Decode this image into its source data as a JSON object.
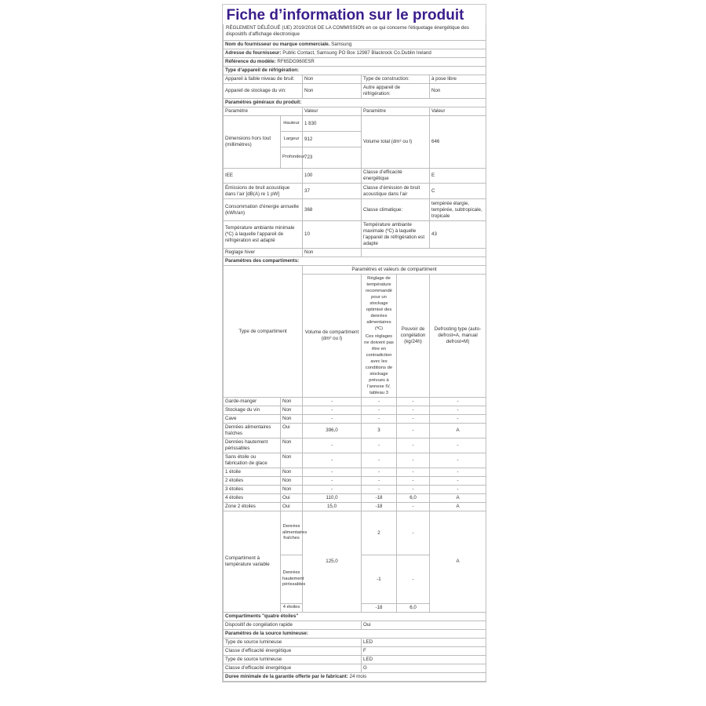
{
  "title": "Fiche d’information sur le produit",
  "regulation": "RÈGLEMENT DÉLÉGUÉ (UE) 2019/2016 DE LA COMMISSION en ce qui concerne l'étiquetage énergétique des dispositifs d'affichage électronique",
  "supplier": {
    "label": "Nom du fournisseur ou marque commerciale.",
    "value": "Samsung"
  },
  "address": {
    "label": "Adresse du fournisseur:",
    "value": "Public Contact, Samsung PO Box 12987 Blackrock Co.Dublin Ireland"
  },
  "model": {
    "label": "Référence du modèle:",
    "value": "RF65DG960ESR"
  },
  "appliance_type": {
    "heading": "Type d’appareil de réfrigération:",
    "low_noise_label": "Appareil à faible niveau de bruit:",
    "low_noise": "Non",
    "construction_label": "Type de construction:",
    "construction": "à pose libre",
    "wine_label": "Appareil de stockage du vin:",
    "wine": "Non",
    "other_label": "Autre appareil de réfrigération:",
    "other": "Non"
  },
  "general": {
    "heading": "Paramètres généraux du produit:",
    "col_param": "Paramètre",
    "col_value": "Valeur",
    "dimensions_label": "Dimensions hors tout (millimètres)",
    "height_label": "Hauteur",
    "height": "1 830",
    "width_label": "Largeur",
    "width": "912",
    "depth_label": "Profondeur",
    "depth": "723",
    "volume_label": "Volume total (dm³ ou l)",
    "volume": "646",
    "eei_label": "IEE",
    "eei": "100",
    "energy_class_label": "Classe d’efficacité énergétique",
    "energy_class": "E",
    "noise_label": "Émissions de bruit acoustique dans l’air [dB(A) re 1 pW]",
    "noise": "37",
    "noise_class_label": "Classe d’émission de bruit acoustique dans l’air",
    "noise_class": "C",
    "consumption_label": "Consommation d’énergie annuelle (kWh/an)",
    "consumption": "368",
    "climate_label": "Classe climatique:",
    "climate": "tempérée élargie, tempérée, subtropicale, tropicale",
    "min_temp_label": "Température ambiante minimale (ºC) à laquelle l’appareil de réfrigération est adapté",
    "min_temp": "10",
    "max_temp_label": "Température ambiante maximale (ºC) à laquelle l’appareil de réfrigération est adapte",
    "max_temp": "43",
    "winter_label": "Reglage hiver",
    "winter": "Non"
  },
  "compartments": {
    "heading": "Paramètres des compartiments:",
    "type_header": "Type de compartiment",
    "group_header": "Paramètres et valeurs de compartiment",
    "volume_header": "Volume de compartiment (dm³ ou l)",
    "temp_header": "Réglage de température recommandé pour un stockage optimisé des denrées alimentaires (ºC)",
    "temp_note": "Ces réglages ne doivent pas être en contradiction avec les conditions de stockage prévues à l’annexe IV, tableau 3",
    "freeze_header": "Pouvoir de congélation (kg/24h)",
    "defrost_header": "Defrosting type (auto-defrost=A, manual defrost=M)",
    "rows": [
      [
        "Garde-manger",
        "Non",
        "-",
        "-",
        "-",
        "-"
      ],
      [
        "Stockage du vin",
        "Non",
        "-",
        "-",
        "-",
        "-"
      ],
      [
        "Cave",
        "Non",
        "-",
        "-",
        "-",
        "-"
      ],
      [
        "Denrées alimentaires fraîches",
        "Oui",
        "396,0",
        "3",
        "-",
        "A"
      ],
      [
        "Denrées hautement périssables",
        "Non",
        "-",
        "-",
        "-",
        "-"
      ],
      [
        "Sans étoile ou fabrication de glace",
        "Non",
        "-",
        "-",
        "-",
        "-"
      ],
      [
        "1 étoile",
        "Non",
        "-",
        "-",
        "-",
        "-"
      ],
      [
        "2 étoiles",
        "Non",
        "-",
        "-",
        "-",
        "-"
      ],
      [
        "3 étoiles",
        "Non",
        "-",
        "-",
        "-",
        "-"
      ],
      [
        "4 étoiles",
        "Oui",
        "110,0",
        "-18",
        "6,0",
        "A"
      ],
      [
        "Zone 2 étoiles",
        "Oui",
        "15,0",
        "-18",
        "-",
        "A"
      ]
    ],
    "variable": {
      "label": "Compartiment à température variable",
      "volume": "125,0",
      "defrost": "A",
      "sub": [
        {
          "name": "Denrées alimentaires fraîches",
          "temp": "2",
          "freeze": "-"
        },
        {
          "name": "Denrées hautement périssables",
          "temp": "-1",
          "freeze": "-"
        },
        {
          "name": "4 étoiles",
          "temp": "-18",
          "freeze": "6,0"
        }
      ]
    },
    "four_star_heading": "Compartiments \"quatre étoiles\"",
    "fast_freeze_label": "Dispositif de congélation rapide",
    "fast_freeze": "Oui"
  },
  "light": {
    "heading": "Paramètres de la source lumineuse:",
    "rows": [
      [
        "Type de source lumineuse",
        "LED"
      ],
      [
        "Classe d’efficacité énergétique",
        "F"
      ],
      [
        "Type de source lumineuse",
        "LED"
      ],
      [
        "Classe d’efficacité énergétique",
        "G"
      ]
    ]
  },
  "warranty": {
    "label": "Duree minimale de la garantie offerte par le fabricant:",
    "value": "24 mois"
  },
  "colors": {
    "title": "#3b1e8c",
    "border": "#bdbdbd"
  }
}
